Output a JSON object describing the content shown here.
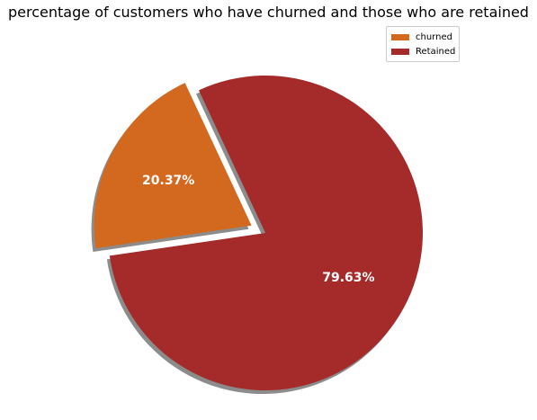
{
  "chart_data": {
    "type": "pie",
    "title": "percentage of customers who have churned and those who are retained",
    "categories": [
      "churned",
      "Retained"
    ],
    "values": [
      20.37,
      79.63
    ],
    "labels": [
      "20.37%",
      "79.63%"
    ],
    "colors": [
      "#d2691e",
      "#a52a2a"
    ],
    "explode": [
      0.1,
      0
    ],
    "shadow": true,
    "legend_position": "top-right"
  }
}
